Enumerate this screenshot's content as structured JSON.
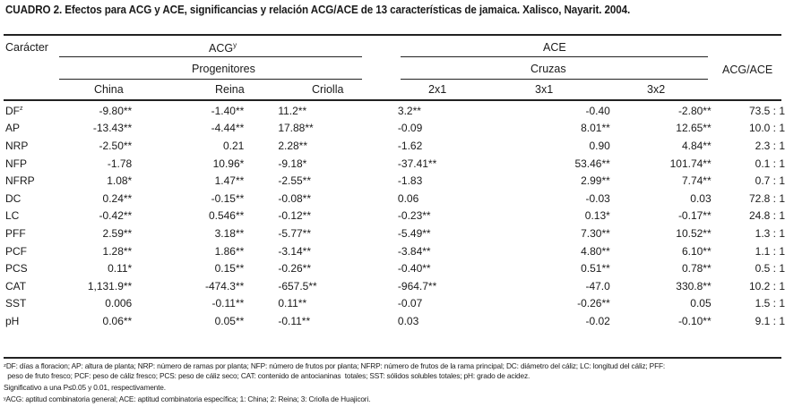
{
  "title": "CUADRO 2. Efectos para ACG y ACE, significancias y relación ACG/ACE de 13 características de jamaica. Xalisco, Nayarit. 2004.",
  "header": {
    "caracter": "Carácter",
    "acg": "ACG",
    "acg_sup": "y",
    "ace": "ACE",
    "progenitores": "Progenitores",
    "cruzas": "Cruzas",
    "ratio": "ACG/ACE",
    "cols": [
      "China",
      "Reina",
      "Criolla",
      "2x1",
      "3x1",
      "3x2"
    ]
  },
  "rows": [
    {
      "name": "DF",
      "sup": "z",
      "v": [
        "-9.80**",
        "-1.40**",
        "11.2**",
        "3.2**",
        "-0.40",
        "-2.80**",
        "73.5 : 1"
      ]
    },
    {
      "name": "AP",
      "sup": "",
      "v": [
        "-13.43**",
        "-4.44**",
        "17.88**",
        "-0.09",
        "8.01**",
        "12.65**",
        "10.0 : 1"
      ]
    },
    {
      "name": "NRP",
      "sup": "",
      "v": [
        "-2.50**",
        "0.21",
        "2.28**",
        "-1.62",
        "0.90",
        "4.84**",
        "2.3 : 1"
      ]
    },
    {
      "name": "NFP",
      "sup": "",
      "v": [
        "-1.78",
        "10.96*",
        "-9.18*",
        "-37.41**",
        "53.46**",
        "101.74**",
        "0.1 : 1"
      ]
    },
    {
      "name": "NFRP",
      "sup": "",
      "v": [
        "1.08*",
        "1.47**",
        "-2.55**",
        "-1.83",
        "2.99**",
        "7.74**",
        "0.7 : 1"
      ]
    },
    {
      "name": "DC",
      "sup": "",
      "v": [
        "0.24**",
        "-0.15**",
        "-0.08**",
        "0.06",
        "-0.03",
        "0.03",
        "72.8 : 1"
      ]
    },
    {
      "name": "LC",
      "sup": "",
      "v": [
        "-0.42**",
        "0.546**",
        "-0.12**",
        "-0.23**",
        "0.13*",
        "-0.17**",
        "24.8 : 1"
      ]
    },
    {
      "name": "PFF",
      "sup": "",
      "v": [
        "2.59**",
        "3.18**",
        "-5.77**",
        "-5.49**",
        "7.30**",
        "10.52**",
        "1.3 : 1"
      ]
    },
    {
      "name": "PCF",
      "sup": "",
      "v": [
        "1.28**",
        "1.86**",
        "-3.14**",
        "-3.84**",
        "4.80**",
        "6.10**",
        "1.1 : 1"
      ]
    },
    {
      "name": "PCS",
      "sup": "",
      "v": [
        "0.11*",
        "0.15**",
        "-0.26**",
        "-0.40**",
        "0.51**",
        "0.78**",
        "0.5 : 1"
      ]
    },
    {
      "name": "CAT",
      "sup": "",
      "v": [
        "1,131.9**",
        "-474.3**",
        "-657.5**",
        "-964.7**",
        "-47.0",
        "330.8**",
        "10.2 : 1"
      ]
    },
    {
      "name": "SST",
      "sup": "",
      "v": [
        "0.006",
        "-0.11**",
        "0.11**",
        "-0.07",
        "-0.26**",
        "0.05",
        "1.5 : 1"
      ]
    },
    {
      "name": "pH",
      "sup": "",
      "v": [
        "0.06**",
        "0.05**",
        "-0.11**",
        "0.03",
        "-0.02",
        "-0.10**",
        "9.1 : 1"
      ]
    }
  ],
  "footnotes": [
    "ᶻDF: días a floracion; AP: altura de planta; NRP: número de ramas por planta; NFP: número de frutos por planta; NFRP: número de frutos de la rama principal; DC: diámetro del cáliz; LC: longitud del cáliz; PFF:",
    "  peso de fruto fresco; PCF: peso de cáliz fresco; PCS: peso de cáliz seco; CAT: contenido de antocianinas  totales; SST: sólidos solubles totales; pH: grado de acidez.",
    "Significativo a una P≤0.05 y 0.01, respectivamente.",
    "ʸACG: aptitud combinatoria general; ACE: aptitud combinatoria específica; 1: China; 2: Reina; 3: Criolla de Huajicori."
  ]
}
